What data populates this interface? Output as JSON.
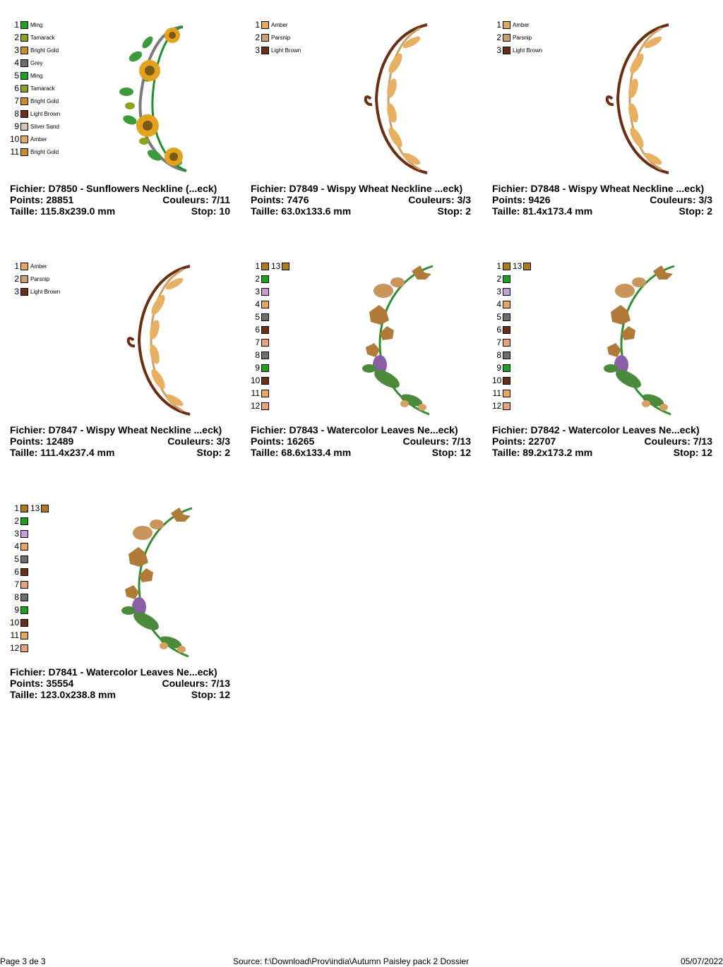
{
  "designs": [
    {
      "file_label": "Fichier: D7850 - Sunflowers Neckline (...eck)",
      "points_label": "Points: 28851",
      "colors_label": "Couleurs: 7/11",
      "size_label": "Taille: 115.8x239.0 mm",
      "stop_label": "Stop: 10",
      "palette": [
        {
          "n": "1",
          "name": "Ming",
          "color": "#1aa61a"
        },
        {
          "n": "2",
          "name": "Tamarack",
          "color": "#8aa51e"
        },
        {
          "n": "3",
          "name": "Bright Gold",
          "color": "#c8901e"
        },
        {
          "n": "4",
          "name": "Grey",
          "color": "#6e6e6e"
        },
        {
          "n": "5",
          "name": "Ming",
          "color": "#1aa61a"
        },
        {
          "n": "6",
          "name": "Tamarack",
          "color": "#8aa51e"
        },
        {
          "n": "7",
          "name": "Bright Gold",
          "color": "#c8901e"
        },
        {
          "n": "8",
          "name": "Light Brown",
          "color": "#6b2e12"
        },
        {
          "n": "9",
          "name": "Silver Sand",
          "color": "#d8c7b5"
        },
        {
          "n": "10",
          "name": "Amber",
          "color": "#e8a85c"
        },
        {
          "n": "11",
          "name": "Bright Gold",
          "color": "#c8901e"
        }
      ]
    },
    {
      "file_label": "Fichier: D7849 - Wispy Wheat Neckline ...eck)",
      "points_label": "Points: 7476",
      "colors_label": "Couleurs: 3/3",
      "size_label": "Taille: 63.0x133.6 mm",
      "stop_label": "Stop: 2",
      "palette": [
        {
          "n": "1",
          "name": "Amber",
          "color": "#e8a85c"
        },
        {
          "n": "2",
          "name": "Parsnip",
          "color": "#c9a36a"
        },
        {
          "n": "3",
          "name": "Light Brown",
          "color": "#6b2e12"
        }
      ]
    },
    {
      "file_label": "Fichier: D7848 - Wispy Wheat Neckline ...eck)",
      "points_label": "Points: 9426",
      "colors_label": "Couleurs: 3/3",
      "size_label": "Taille: 81.4x173.4 mm",
      "stop_label": "Stop: 2",
      "palette": [
        {
          "n": "1",
          "name": "Amber",
          "color": "#e8a85c"
        },
        {
          "n": "2",
          "name": "Parsnip",
          "color": "#c9a36a"
        },
        {
          "n": "3",
          "name": "Light Brown",
          "color": "#6b2e12"
        }
      ]
    },
    {
      "file_label": "Fichier: D7847 - Wispy Wheat Neckline ...eck)",
      "points_label": "Points: 12489",
      "colors_label": "Couleurs: 3/3",
      "size_label": "Taille: 111.4x237.4 mm",
      "stop_label": "Stop: 2",
      "palette": [
        {
          "n": "1",
          "name": "Amber",
          "color": "#e8a85c"
        },
        {
          "n": "2",
          "name": "Parsnip",
          "color": "#c9a36a"
        },
        {
          "n": "3",
          "name": "Light Brown",
          "color": "#6b2e12"
        }
      ]
    },
    {
      "file_label": "Fichier: D7843 - Watercolor Leaves Ne...eck)",
      "points_label": "Points: 16265",
      "colors_label": "Couleurs: 7/13",
      "size_label": "Taille: 68.6x133.4 mm",
      "stop_label": "Stop: 12",
      "extra_num": "13",
      "extra_color": "#b07a18",
      "palette": [
        {
          "n": "1",
          "name": "",
          "color": "#b07a18"
        },
        {
          "n": "2",
          "name": "",
          "color": "#17a317"
        },
        {
          "n": "3",
          "name": "",
          "color": "#c79ad8"
        },
        {
          "n": "4",
          "name": "",
          "color": "#e8a85c"
        },
        {
          "n": "5",
          "name": "",
          "color": "#6e6e6e"
        },
        {
          "n": "6",
          "name": "",
          "color": "#6b2e12"
        },
        {
          "n": "7",
          "name": "",
          "color": "#eba276"
        },
        {
          "n": "8",
          "name": "",
          "color": "#6e6e6e"
        },
        {
          "n": "9",
          "name": "",
          "color": "#17a317"
        },
        {
          "n": "10",
          "name": "",
          "color": "#6b2e12"
        },
        {
          "n": "11",
          "name": "",
          "color": "#e8a85c"
        },
        {
          "n": "12",
          "name": "",
          "color": "#eba276"
        }
      ]
    },
    {
      "file_label": "Fichier: D7842 - Watercolor Leaves Ne...eck)",
      "points_label": "Points: 22707",
      "colors_label": "Couleurs: 7/13",
      "size_label": "Taille: 89.2x173.2 mm",
      "stop_label": "Stop: 12",
      "extra_num": "13",
      "extra_color": "#b07a18",
      "palette": [
        {
          "n": "1",
          "name": "",
          "color": "#b07a18"
        },
        {
          "n": "2",
          "name": "",
          "color": "#17a317"
        },
        {
          "n": "3",
          "name": "",
          "color": "#c79ad8"
        },
        {
          "n": "4",
          "name": "",
          "color": "#e8a85c"
        },
        {
          "n": "5",
          "name": "",
          "color": "#6e6e6e"
        },
        {
          "n": "6",
          "name": "",
          "color": "#6b2e12"
        },
        {
          "n": "7",
          "name": "",
          "color": "#eba276"
        },
        {
          "n": "8",
          "name": "",
          "color": "#6e6e6e"
        },
        {
          "n": "9",
          "name": "",
          "color": "#17a317"
        },
        {
          "n": "10",
          "name": "",
          "color": "#6b2e12"
        },
        {
          "n": "11",
          "name": "",
          "color": "#e8a85c"
        },
        {
          "n": "12",
          "name": "",
          "color": "#eba276"
        }
      ]
    },
    {
      "file_label": "Fichier: D7841 - Watercolor Leaves Ne...eck)",
      "points_label": "Points: 35554",
      "colors_label": "Couleurs: 7/13",
      "size_label": "Taille: 123.0x238.8 mm",
      "stop_label": "Stop: 12",
      "extra_num": "13",
      "extra_color": "#b07a18",
      "palette": [
        {
          "n": "1",
          "name": "",
          "color": "#b07a18"
        },
        {
          "n": "2",
          "name": "",
          "color": "#17a317"
        },
        {
          "n": "3",
          "name": "",
          "color": "#c79ad8"
        },
        {
          "n": "4",
          "name": "",
          "color": "#e8a85c"
        },
        {
          "n": "5",
          "name": "",
          "color": "#6e6e6e"
        },
        {
          "n": "6",
          "name": "",
          "color": "#6b2e12"
        },
        {
          "n": "7",
          "name": "",
          "color": "#eba276"
        },
        {
          "n": "8",
          "name": "",
          "color": "#6e6e6e"
        },
        {
          "n": "9",
          "name": "",
          "color": "#17a317"
        },
        {
          "n": "10",
          "name": "",
          "color": "#6b2e12"
        },
        {
          "n": "11",
          "name": "",
          "color": "#e8a85c"
        },
        {
          "n": "12",
          "name": "",
          "color": "#eba276"
        }
      ]
    }
  ],
  "footer": {
    "page": "Page 3 de 3",
    "source": "Source: f:\\Download\\Prov\\india\\Autumn Paisley pack 2 Dossier",
    "date": "05/07/2022"
  }
}
